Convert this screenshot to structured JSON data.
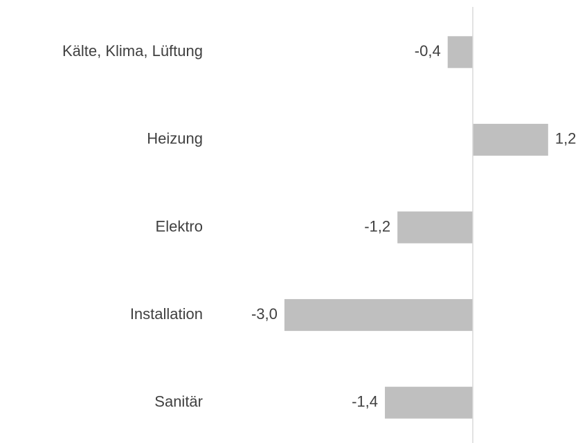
{
  "chart_data": {
    "type": "barh",
    "categories": [
      "Kälte, Klima, Lüftung",
      "Heizung",
      "Elektro",
      "Installation",
      "Sanitär"
    ],
    "values": [
      -0.4,
      1.2,
      -1.2,
      -3.0,
      -1.4
    ],
    "value_labels": [
      "-0,4",
      "1,2",
      "-1,2",
      "-3,0",
      "-1,4"
    ],
    "color": "#bfbfbf"
  }
}
